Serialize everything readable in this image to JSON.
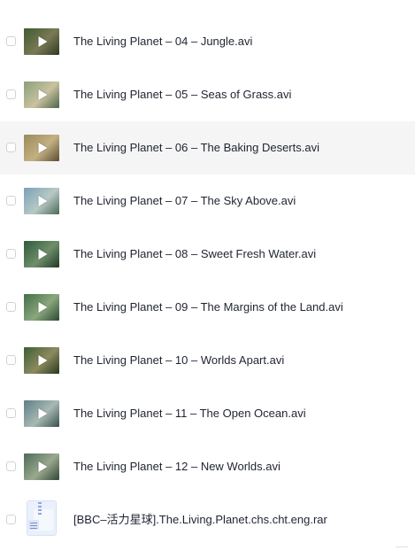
{
  "files": [
    {
      "name": "The Living Planet – 04 – Jungle.avi",
      "thumb_colors": [
        "#3f5b2e",
        "#7a7a55",
        "#2f3a22"
      ],
      "hovered": false
    },
    {
      "name": "The Living Planet – 05 – Seas of Grass.avi",
      "thumb_colors": [
        "#8aa07a",
        "#c9c2a0",
        "#4e6448"
      ],
      "hovered": false
    },
    {
      "name": "The Living Planet – 06 – The Baking Deserts.avi",
      "thumb_colors": [
        "#9b8a5c",
        "#c4b083",
        "#5b4c31"
      ],
      "hovered": true
    },
    {
      "name": "The Living Planet – 07 – The Sky Above.avi",
      "thumb_colors": [
        "#7aa0b8",
        "#b7c9c5",
        "#4a6a56"
      ],
      "hovered": false
    },
    {
      "name": "The Living Planet – 08 – Sweet Fresh Water.avi",
      "thumb_colors": [
        "#2e5a3b",
        "#6f8f69",
        "#1f3a28"
      ],
      "hovered": false
    },
    {
      "name": "The Living Planet – 09 – The Margins of the Land.avi",
      "thumb_colors": [
        "#426e49",
        "#8aa77d",
        "#2a4a32"
      ],
      "hovered": false
    },
    {
      "name": "The Living Planet – 10 – Worlds Apart.avi",
      "thumb_colors": [
        "#3d5e35",
        "#8d8a5f",
        "#25381f"
      ],
      "hovered": false
    },
    {
      "name": "The Living Planet – 11 – The Open Ocean.avi",
      "thumb_colors": [
        "#5c7f86",
        "#a9b9b3",
        "#36504f"
      ],
      "hovered": false
    },
    {
      "name": "The Living Planet – 12 – New Worlds.avi",
      "thumb_colors": [
        "#4d6a58",
        "#9aa98e",
        "#2f4537"
      ],
      "hovered": false
    }
  ],
  "archive": {
    "name": "[BBC–活力星球].The.Living.Planet.chs.cht.eng.rar",
    "icon": "archive-file-icon"
  },
  "icons": {
    "video_play": "play-icon",
    "checkbox": "checkbox"
  }
}
